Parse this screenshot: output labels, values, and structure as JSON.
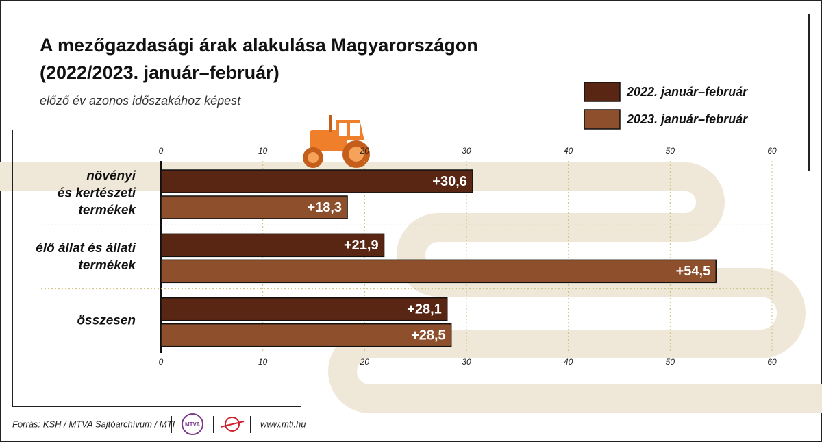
{
  "chart_data": {
    "type": "bar",
    "orientation": "horizontal",
    "title": "A mezőgazdasági árak alakulása Magyarországon",
    "title_line2": "(2022/2023. január–február)",
    "subtitle": "előző év azonos időszakához képest",
    "categories": [
      "növényi\nés kertészeti\ntermékek",
      "élő állat és állati\ntermékek",
      "összesen"
    ],
    "series": [
      {
        "name": "2022. január–február",
        "color": "#5a2614",
        "values": [
          30.6,
          21.9,
          28.1
        ],
        "value_labels": [
          "+30,6",
          "+21,9",
          "+28,1"
        ]
      },
      {
        "name": "2023. január–február",
        "color": "#8d4f2c",
        "values": [
          18.3,
          54.5,
          28.5
        ],
        "value_labels": [
          "+18,3",
          "+54,5",
          "+28,5"
        ]
      }
    ],
    "xlim": [
      0,
      60
    ],
    "xticks": [
      0,
      10,
      20,
      30,
      40,
      50,
      60
    ],
    "grid": true,
    "source": "Forrás: KSH / MTVA Sajtóarchívum / MTI",
    "logo": "MTVA",
    "website": "www.mti.hu"
  }
}
